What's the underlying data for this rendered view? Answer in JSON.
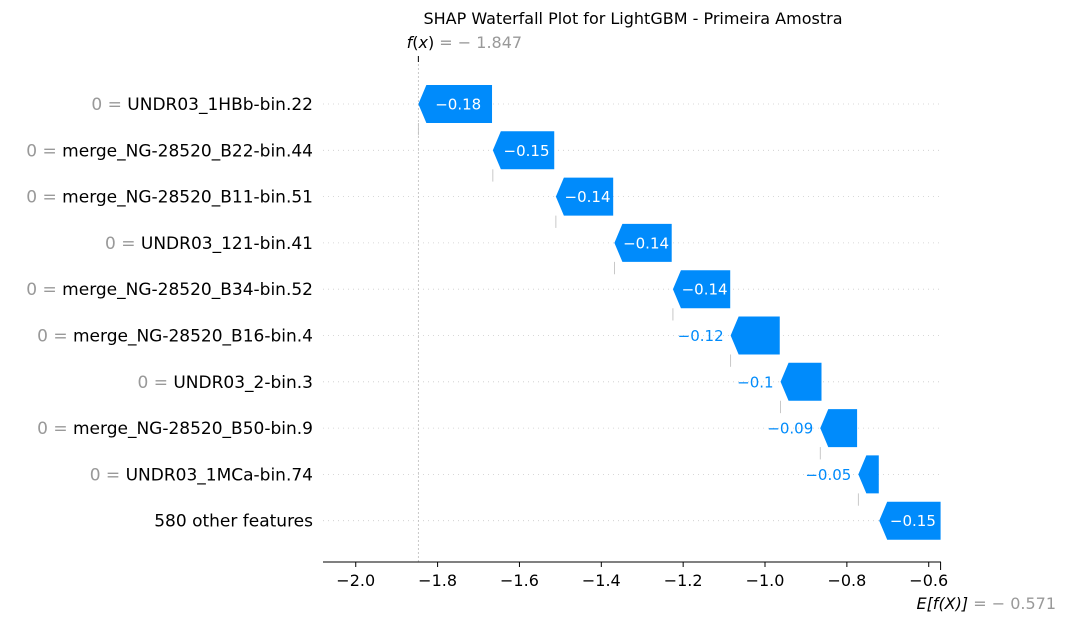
{
  "chart_data": {
    "type": "bar",
    "title": "SHAP Waterfall Plot for LightGBM - Primeira Amostra",
    "fx": {
      "label_fn": "f",
      "label_arg": "x",
      "value_text": " = − 1.847",
      "value": -1.847
    },
    "efx": {
      "label": "E[f(X)]",
      "value_text": " = − 0.571",
      "value": -0.571
    },
    "xlim": [
      -2.08,
      -0.57
    ],
    "xticks": [
      {
        "value": -2.0,
        "label": "−2.0"
      },
      {
        "value": -1.8,
        "label": "−1.8"
      },
      {
        "value": -1.6,
        "label": "−1.6"
      },
      {
        "value": -1.4,
        "label": "−1.4"
      },
      {
        "value": -1.2,
        "label": "−1.2"
      },
      {
        "value": -1.0,
        "label": "−1.0"
      },
      {
        "value": -0.8,
        "label": "−0.8"
      },
      {
        "value": -0.6,
        "label": "−0.6"
      }
    ],
    "features": [
      {
        "value_prefix": "0 = ",
        "name": "UNDR03_1HBb-bin.22",
        "shap": -0.18,
        "shap_label": "−0.18",
        "start": -1.667
      },
      {
        "value_prefix": "0 = ",
        "name": "merge_NG-28520_B22-bin.44",
        "shap": -0.15,
        "shap_label": "−0.15",
        "start": -1.515
      },
      {
        "value_prefix": "0 = ",
        "name": "merge_NG-28520_B11-bin.51",
        "shap": -0.14,
        "shap_label": "−0.14",
        "start": -1.371
      },
      {
        "value_prefix": "0 = ",
        "name": "UNDR03_121-bin.41",
        "shap": -0.14,
        "shap_label": "−0.14",
        "start": -1.228
      },
      {
        "value_prefix": "0 = ",
        "name": "merge_NG-28520_B34-bin.52",
        "shap": -0.14,
        "shap_label": "−0.14",
        "start": -1.085
      },
      {
        "value_prefix": "0 = ",
        "name": "merge_NG-28520_B16-bin.4",
        "shap": -0.12,
        "shap_label": "−0.12",
        "start": -0.964
      },
      {
        "value_prefix": "0 = ",
        "name": "UNDR03_2-bin.3",
        "shap": -0.1,
        "shap_label": "−0.1",
        "start": -0.862
      },
      {
        "value_prefix": "0 = ",
        "name": "merge_NG-28520_B50-bin.9",
        "shap": -0.09,
        "shap_label": "−0.09",
        "start": -0.775
      },
      {
        "value_prefix": "0 = ",
        "name": "UNDR03_1MCa-bin.74",
        "shap": -0.05,
        "shap_label": "−0.05",
        "start": -0.722
      },
      {
        "value_prefix": "",
        "name": "580 other features",
        "shap": -0.15,
        "shap_label": "−0.15",
        "start": -0.571
      }
    ],
    "colors": {
      "negative": "#008bfb",
      "muted_text": "#999999",
      "grid": "#cccccc"
    }
  }
}
